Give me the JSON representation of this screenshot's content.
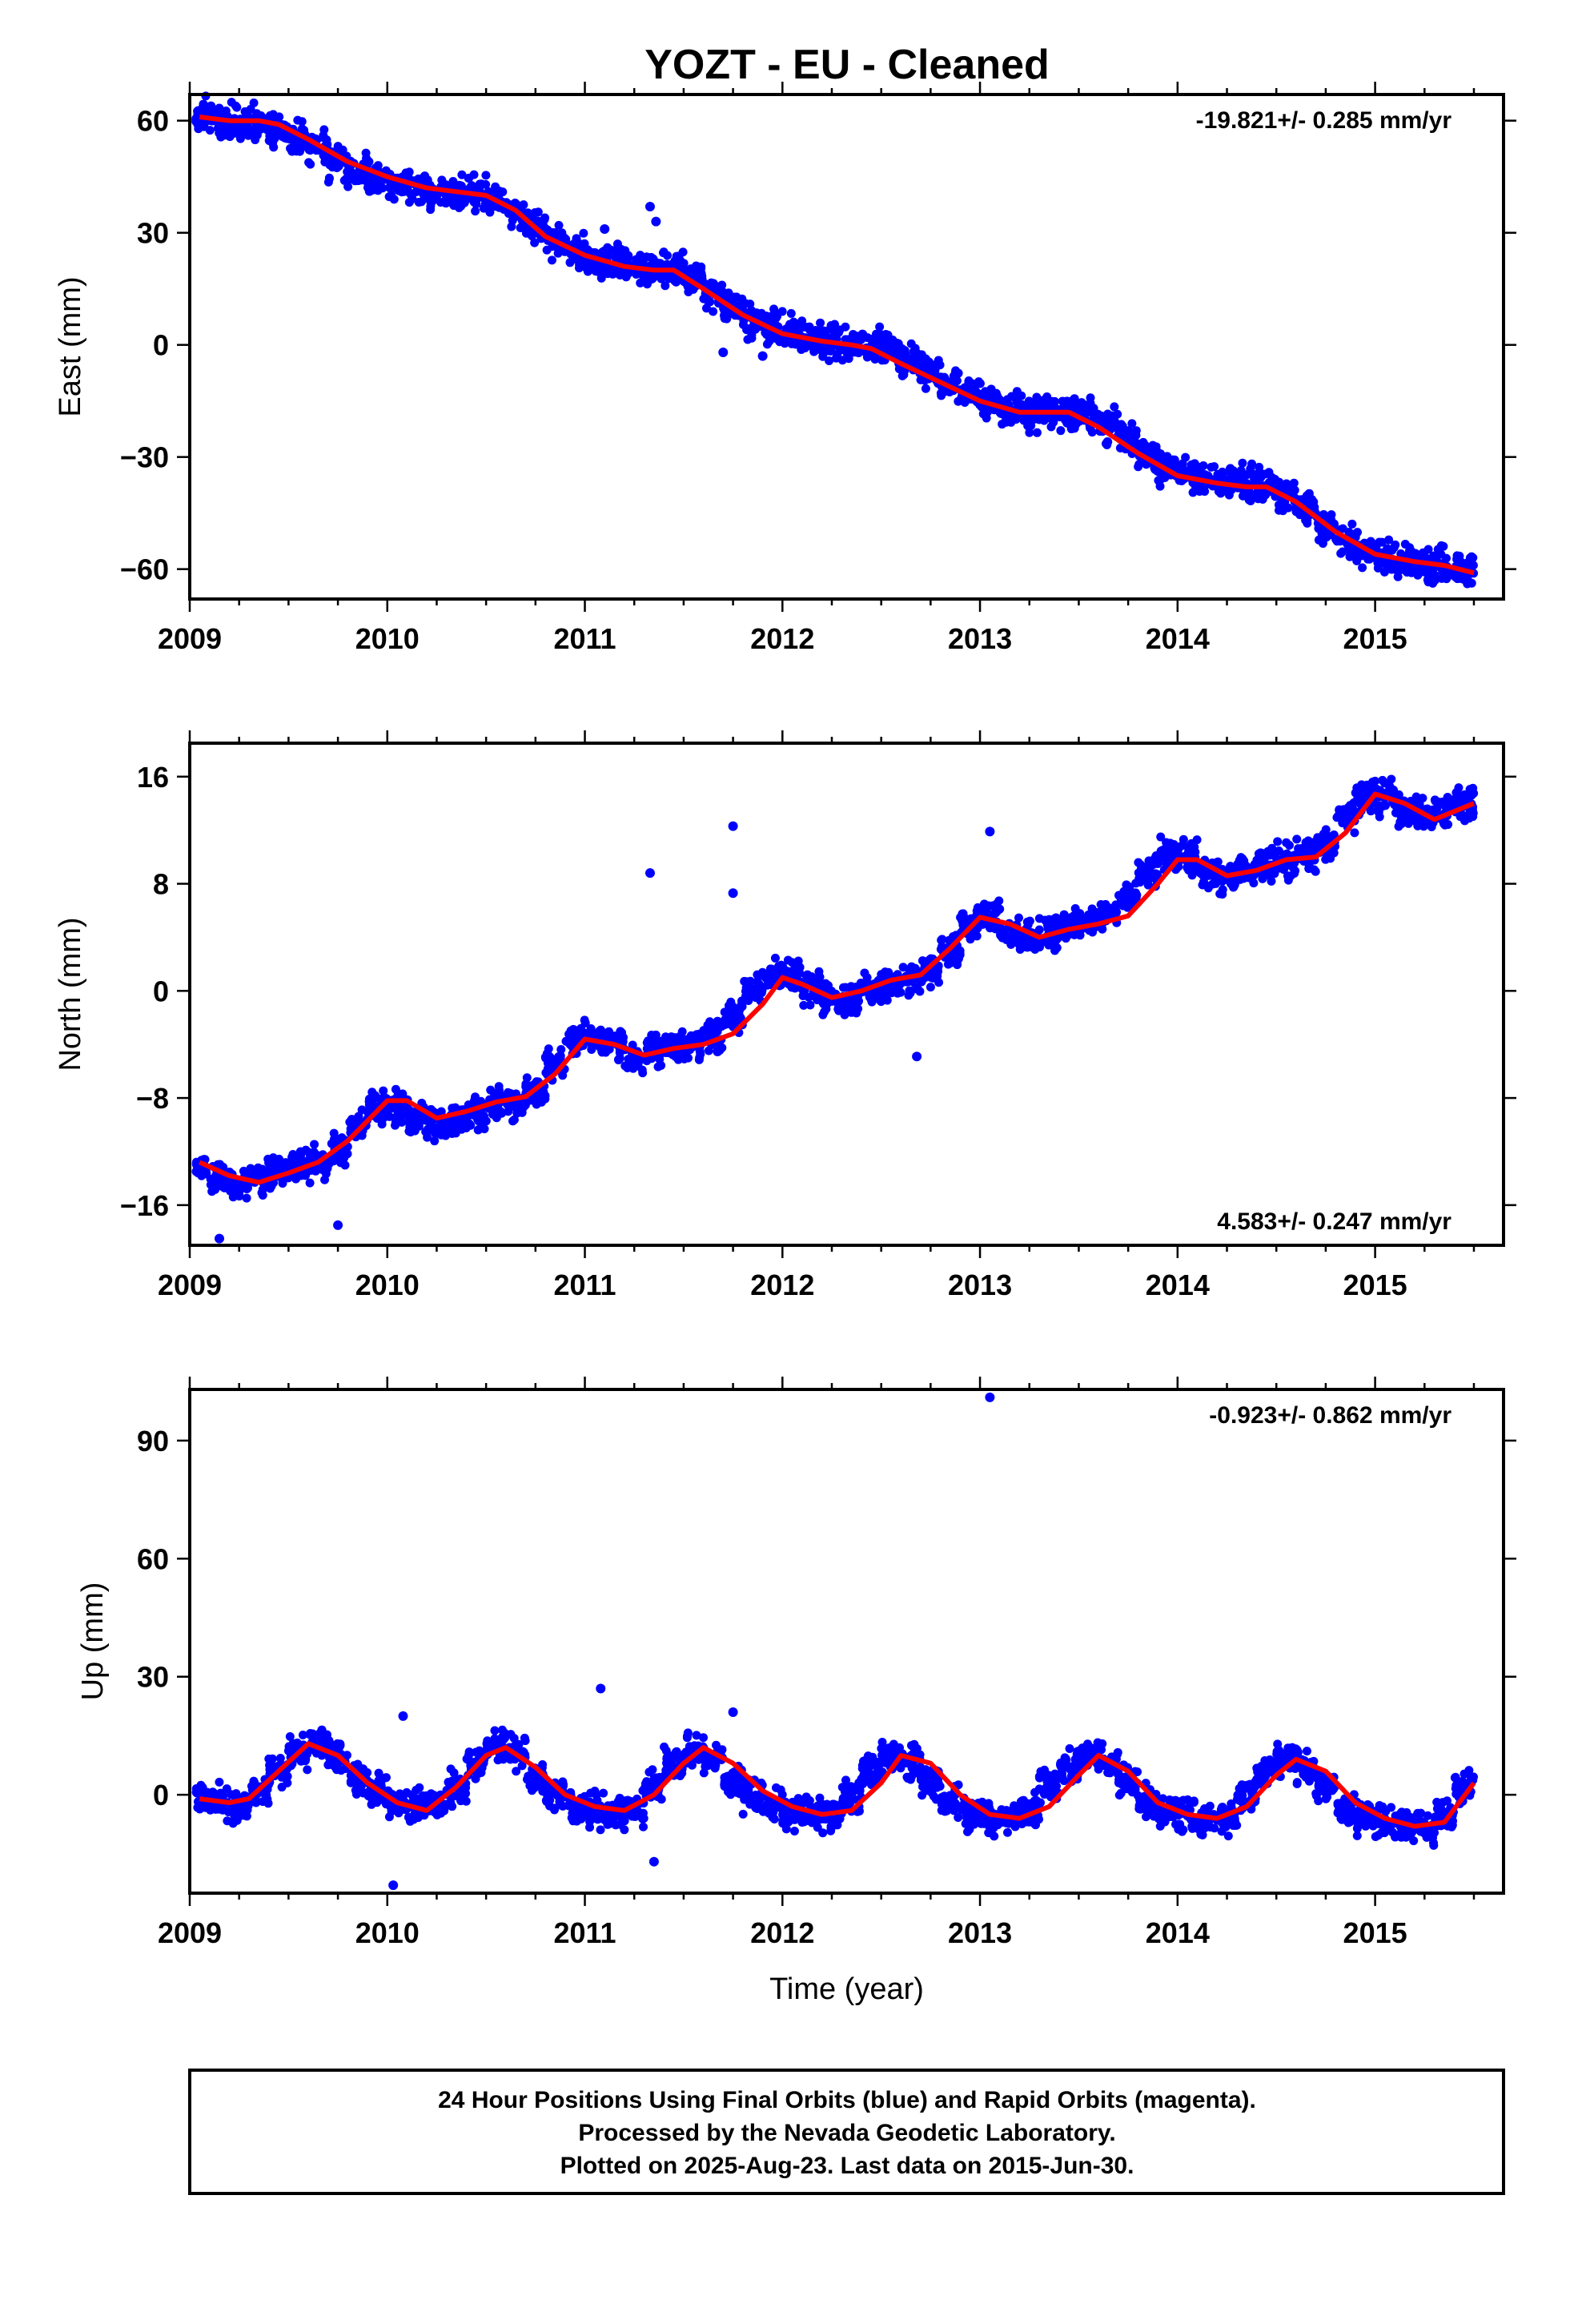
{
  "title": "YOZT  - EU - Cleaned",
  "colors": {
    "final_orbits": "#0000ff",
    "model": "#ff0000",
    "axes": "#000000"
  },
  "chart_data": [
    {
      "type": "scatter",
      "id": "east",
      "ylabel": "East (mm)",
      "xlabel": "",
      "xlim": [
        2009.0,
        2015.65
      ],
      "ylim": [
        -68,
        67
      ],
      "xticks": [
        2009,
        2010,
        2011,
        2012,
        2013,
        2014,
        2015
      ],
      "yticks": [
        60,
        30,
        0,
        -30,
        -60
      ],
      "rate_text": "-19.821+/- 0.285 mm/yr",
      "rate_position": "top-right",
      "series": [
        {
          "role": "daily positions",
          "kind": "points",
          "x": [
            2009.05,
            2009.15,
            2009.25,
            2009.35,
            2009.45,
            2009.55,
            2009.65,
            2009.75,
            2009.85,
            2009.95,
            2010.05,
            2010.15,
            2010.25,
            2010.35,
            2010.45,
            2010.55,
            2010.65,
            2010.75,
            2010.85,
            2010.95,
            2011.05,
            2011.15,
            2011.25,
            2011.35,
            2011.45,
            2011.55,
            2011.65,
            2011.75,
            2011.85,
            2011.95,
            2012.05,
            2012.15,
            2012.25,
            2012.35,
            2012.45,
            2012.55,
            2012.65,
            2012.75,
            2012.85,
            2012.95,
            2013.05,
            2013.15,
            2013.25,
            2013.35,
            2013.45,
            2013.55,
            2013.65,
            2013.75,
            2013.85,
            2013.95,
            2014.05,
            2014.15,
            2014.25,
            2014.35,
            2014.45,
            2014.55,
            2014.65,
            2014.75,
            2014.85,
            2014.95,
            2015.05,
            2015.15,
            2015.25,
            2015.35,
            2015.45
          ],
          "y": [
            62,
            60,
            60,
            59,
            58,
            55,
            52,
            49,
            47,
            45,
            43,
            42,
            41,
            40,
            40,
            39,
            36,
            32,
            28,
            25,
            23,
            22,
            21,
            20,
            20,
            18,
            14,
            10,
            7,
            5,
            3,
            2,
            1,
            0,
            0,
            -1,
            -4,
            -7,
            -10,
            -13,
            -15,
            -17,
            -18,
            -18,
            -18,
            -19,
            -22,
            -26,
            -30,
            -33,
            -35,
            -36,
            -37,
            -37,
            -38,
            -40,
            -44,
            -49,
            -52,
            -55,
            -57,
            -58,
            -59,
            -59,
            -60
          ]
        },
        {
          "role": "outliers",
          "kind": "points",
          "x": [
            2011.1,
            2011.33,
            2011.36,
            2011.9,
            2011.7
          ],
          "y": [
            31,
            37,
            33,
            -3,
            -2
          ]
        },
        {
          "role": "model",
          "kind": "line",
          "x": [
            2009.05,
            2009.2,
            2009.35,
            2009.45,
            2009.6,
            2009.8,
            2010.0,
            2010.2,
            2010.35,
            2010.5,
            2010.65,
            2010.8,
            2011.0,
            2011.2,
            2011.35,
            2011.45,
            2011.6,
            2011.8,
            2012.0,
            2012.2,
            2012.35,
            2012.45,
            2012.6,
            2012.8,
            2013.0,
            2013.2,
            2013.35,
            2013.45,
            2013.6,
            2013.8,
            2014.0,
            2014.2,
            2014.35,
            2014.45,
            2014.6,
            2014.8,
            2015.0,
            2015.2,
            2015.35,
            2015.5
          ],
          "y": [
            61,
            60,
            60,
            59,
            55,
            49,
            45,
            42,
            41,
            40,
            36,
            29,
            24,
            21,
            20,
            20,
            15,
            8,
            3,
            1,
            0,
            -1,
            -5,
            -10,
            -15,
            -18,
            -18,
            -18,
            -22,
            -29,
            -35,
            -37,
            -38,
            -38,
            -42,
            -50,
            -56,
            -58,
            -59,
            -61
          ]
        }
      ]
    },
    {
      "type": "scatter",
      "id": "north",
      "ylabel": "North (mm)",
      "xlabel": "",
      "xlim": [
        2009.0,
        2015.65
      ],
      "ylim": [
        -19,
        18.5
      ],
      "xticks": [
        2009,
        2010,
        2011,
        2012,
        2013,
        2014,
        2015
      ],
      "yticks": [
        16,
        8,
        0,
        -8,
        -16
      ],
      "rate_text": "4.583+/- 0.247 mm/yr",
      "rate_position": "bottom-right",
      "series": [
        {
          "role": "daily positions",
          "kind": "points",
          "x": [
            2009.05,
            2009.15,
            2009.25,
            2009.35,
            2009.45,
            2009.55,
            2009.65,
            2009.75,
            2009.85,
            2009.95,
            2010.05,
            2010.15,
            2010.25,
            2010.35,
            2010.45,
            2010.55,
            2010.65,
            2010.75,
            2010.85,
            2010.95,
            2011.05,
            2011.15,
            2011.25,
            2011.35,
            2011.45,
            2011.55,
            2011.65,
            2011.75,
            2011.85,
            2011.95,
            2012.05,
            2012.15,
            2012.25,
            2012.35,
            2012.45,
            2012.55,
            2012.65,
            2012.75,
            2012.85,
            2012.95,
            2013.05,
            2013.15,
            2013.25,
            2013.35,
            2013.45,
            2013.55,
            2013.65,
            2013.75,
            2013.85,
            2013.95,
            2014.05,
            2014.15,
            2014.25,
            2014.35,
            2014.45,
            2014.55,
            2014.65,
            2014.75,
            2014.85,
            2014.95,
            2015.05,
            2015.15,
            2015.25,
            2015.35,
            2015.45
          ],
          "y": [
            -13,
            -14,
            -14.5,
            -14,
            -13.5,
            -13,
            -13,
            -12,
            -10,
            -8.5,
            -8.5,
            -9.5,
            -10,
            -9.5,
            -9,
            -8.5,
            -8.5,
            -7.5,
            -5.5,
            -3.5,
            -3.5,
            -4,
            -5,
            -4.5,
            -4,
            -4,
            -3.5,
            -2,
            0,
            1,
            1,
            0,
            -0.5,
            -0.5,
            0,
            0.5,
            1,
            1.5,
            3,
            5,
            5.5,
            4.5,
            4,
            4.5,
            5,
            5,
            5.5,
            7,
            9,
            10,
            10,
            9,
            8.5,
            9,
            9.5,
            9.5,
            10,
            11,
            13,
            14.5,
            14.5,
            13.5,
            13,
            13.5,
            14
          ]
        },
        {
          "role": "outliers",
          "kind": "points",
          "x": [
            2011.33,
            2011.75,
            2011.75,
            2013.05,
            2009.75,
            2009.15,
            2012.68
          ],
          "y": [
            8.8,
            12.3,
            7.3,
            11.9,
            -17.5,
            -18.5,
            -4.9
          ]
        },
        {
          "role": "model",
          "kind": "line",
          "x": [
            2009.05,
            2009.2,
            2009.35,
            2009.5,
            2009.65,
            2009.8,
            2010.0,
            2010.1,
            2010.25,
            2010.4,
            2010.55,
            2010.7,
            2010.85,
            2011.0,
            2011.15,
            2011.3,
            2011.45,
            2011.6,
            2011.75,
            2011.9,
            2012.0,
            2012.1,
            2012.25,
            2012.4,
            2012.55,
            2012.7,
            2012.85,
            2013.0,
            2013.15,
            2013.3,
            2013.45,
            2013.6,
            2013.75,
            2013.9,
            2014.0,
            2014.1,
            2014.25,
            2014.4,
            2014.55,
            2014.7,
            2014.85,
            2015.0,
            2015.15,
            2015.3,
            2015.5
          ],
          "y": [
            -12.8,
            -13.8,
            -14.3,
            -13.6,
            -12.8,
            -11.2,
            -8.2,
            -8.2,
            -9.5,
            -9.0,
            -8.3,
            -7.9,
            -6.2,
            -3.6,
            -4.0,
            -4.8,
            -4.3,
            -4.0,
            -3.2,
            -1.0,
            1.0,
            0.5,
            -0.5,
            0.0,
            0.8,
            1.2,
            3.2,
            5.5,
            5.0,
            4.0,
            4.6,
            5.0,
            5.6,
            8.0,
            9.8,
            9.8,
            8.6,
            9.0,
            9.8,
            10.0,
            11.8,
            14.7,
            14.0,
            12.8,
            14.0
          ]
        }
      ]
    },
    {
      "type": "scatter",
      "id": "up",
      "ylabel": "Up (mm)",
      "xlabel": "Time (year)",
      "xlim": [
        2009.0,
        2015.65
      ],
      "ylim": [
        -25,
        103
      ],
      "xticks": [
        2009,
        2010,
        2011,
        2012,
        2013,
        2014,
        2015
      ],
      "yticks": [
        90,
        60,
        30,
        0
      ],
      "rate_text": "-0.923+/- 0.862 mm/yr",
      "rate_position": "top-right",
      "series": [
        {
          "role": "daily positions",
          "kind": "points",
          "x": [
            2009.05,
            2009.15,
            2009.25,
            2009.35,
            2009.45,
            2009.55,
            2009.65,
            2009.75,
            2009.85,
            2009.95,
            2010.05,
            2010.15,
            2010.25,
            2010.35,
            2010.45,
            2010.55,
            2010.65,
            2010.75,
            2010.85,
            2010.95,
            2011.05,
            2011.15,
            2011.25,
            2011.35,
            2011.45,
            2011.55,
            2011.65,
            2011.75,
            2011.85,
            2011.95,
            2012.05,
            2012.15,
            2012.25,
            2012.35,
            2012.45,
            2012.55,
            2012.65,
            2012.75,
            2012.85,
            2012.95,
            2013.05,
            2013.15,
            2013.25,
            2013.35,
            2013.45,
            2013.55,
            2013.65,
            2013.75,
            2013.85,
            2013.95,
            2014.05,
            2014.15,
            2014.25,
            2014.35,
            2014.45,
            2014.55,
            2014.65,
            2014.75,
            2014.85,
            2014.95,
            2015.05,
            2015.15,
            2015.25,
            2015.35,
            2015.45
          ],
          "y": [
            -1,
            -2,
            -3,
            1,
            6,
            11,
            13,
            9,
            4,
            1,
            -2,
            -3,
            -2,
            2,
            8,
            12,
            11,
            5,
            0,
            -3,
            -4,
            -5,
            -4,
            2,
            8,
            11,
            9,
            4,
            0,
            -3,
            -4,
            -5,
            -5,
            0,
            6,
            10,
            8,
            3,
            -2,
            -5,
            -6,
            -6,
            -4,
            2,
            7,
            10,
            8,
            3,
            -2,
            -4,
            -5,
            -6,
            -6,
            0,
            6,
            9,
            7,
            2,
            -3,
            -6,
            -7,
            -8,
            -8,
            -5,
            2
          ]
        },
        {
          "role": "outliers",
          "kind": "points",
          "x": [
            2013.05,
            2011.08,
            2010.08,
            2010.03,
            2011.75,
            2011.35
          ],
          "y": [
            101,
            27,
            20,
            -23,
            21,
            -17
          ]
        },
        {
          "role": "model",
          "kind": "line",
          "x": [
            2009.05,
            2009.2,
            2009.3,
            2009.45,
            2009.6,
            2009.75,
            2009.9,
            2010.05,
            2010.2,
            2010.35,
            2010.5,
            2010.6,
            2010.75,
            2010.9,
            2011.05,
            2011.2,
            2011.35,
            2011.5,
            2011.6,
            2011.75,
            2011.9,
            2012.05,
            2012.2,
            2012.35,
            2012.5,
            2012.6,
            2012.75,
            2012.9,
            2013.05,
            2013.2,
            2013.35,
            2013.5,
            2013.6,
            2013.75,
            2013.9,
            2014.05,
            2014.2,
            2014.35,
            2014.5,
            2014.6,
            2014.75,
            2014.9,
            2015.05,
            2015.2,
            2015.35,
            2015.5
          ],
          "y": [
            -1,
            -2,
            -1,
            6,
            13,
            10,
            3,
            -2,
            -4,
            2,
            10,
            12,
            7,
            0,
            -3,
            -4,
            0,
            8,
            12,
            8,
            1,
            -3,
            -5,
            -4,
            3,
            10,
            8,
            0,
            -5,
            -6,
            -3,
            5,
            10,
            6,
            -2,
            -5,
            -6,
            -3,
            5,
            9,
            6,
            -2,
            -6,
            -8,
            -7,
            3
          ]
        }
      ]
    }
  ],
  "footer": {
    "line1": "24 Hour Positions Using Final Orbits (blue) and Rapid Orbits (magenta).",
    "line2": "Processed by the Nevada Geodetic Laboratory.",
    "line3": "Plotted on 2025-Aug-23. Last data on 2015-Jun-30."
  }
}
